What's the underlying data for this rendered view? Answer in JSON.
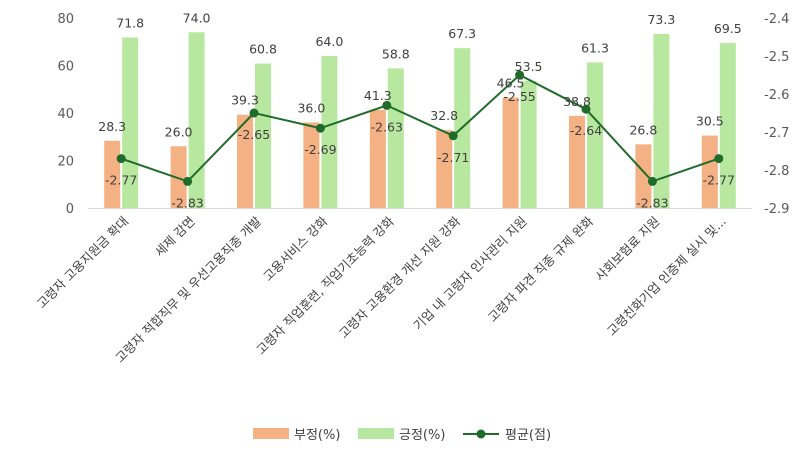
{
  "chart_data": {
    "type": "bar",
    "categories": [
      "고령자 고용지원금 확대",
      "세제 감면",
      "고령자 적합직무 및 우선고용직종 개발",
      "고용서비스 강화",
      "고령자 직업훈련, 직업기초능력 강화",
      "고령자 고용환경 개선 지원 강화",
      "기업 내 고령자 인사관리 지원",
      "고령자 파견 직종 규제 완화",
      "사회보험료 지원",
      "고령친화기업 인증제 실시 및..."
    ],
    "series": [
      {
        "name": "부정(%)",
        "type": "bar",
        "axis": "left",
        "color": "#F4B183",
        "values": [
          28.3,
          26.0,
          39.3,
          36.0,
          41.3,
          32.8,
          46.5,
          38.8,
          26.8,
          30.5
        ],
        "labels": [
          "28.3",
          "26.0",
          "39.3",
          "36.0",
          "41.3",
          "32.8",
          "46.5",
          "38.8",
          "26.8",
          "30.5"
        ]
      },
      {
        "name": "긍정(%)",
        "type": "bar",
        "axis": "left",
        "color": "#B8E8A0",
        "values": [
          71.8,
          74.0,
          60.8,
          64.0,
          58.8,
          67.3,
          53.5,
          61.3,
          73.3,
          69.5
        ],
        "labels": [
          "71.8",
          "74.0",
          "60.8",
          "64.0",
          "58.8",
          "67.3",
          "53.5",
          "61.3",
          "73.3",
          "69.5"
        ]
      },
      {
        "name": "평균(점)",
        "type": "line",
        "axis": "right",
        "color": "#1E6B2A",
        "values": [
          -2.77,
          -2.83,
          -2.65,
          -2.69,
          -2.63,
          -2.71,
          -2.55,
          -2.64,
          -2.83,
          -2.77
        ],
        "labels": [
          "-2.77",
          "-2.83",
          "-2.65",
          "-2.69",
          "-2.63",
          "-2.71",
          "-2.55",
          "-2.64",
          "-2.83",
          "-2.77"
        ]
      }
    ],
    "y_left": {
      "min": 0,
      "max": 80,
      "step": 20,
      "ticks": [
        "0",
        "20",
        "40",
        "60",
        "80"
      ]
    },
    "y_right": {
      "min": -2.9,
      "max": -2.4,
      "step": 0.1,
      "ticks": [
        "-2.4",
        "-2.5",
        "-2.6",
        "-2.7",
        "-2.8",
        "-2.9"
      ]
    },
    "grid": false,
    "legend": "bottom"
  }
}
